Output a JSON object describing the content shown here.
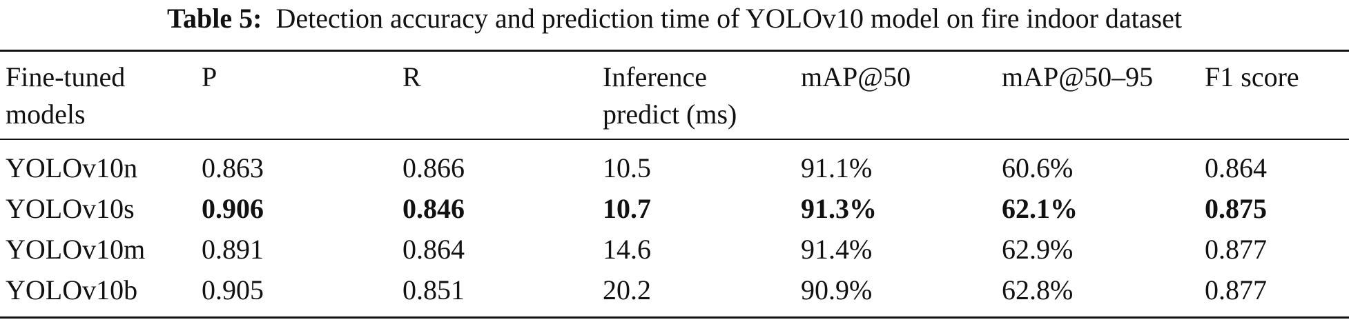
{
  "caption": {
    "label": "Table 5:",
    "text": "Detection accuracy and prediction time of YOLOv10 model on fire indoor dataset"
  },
  "table": {
    "headers": [
      [
        "Fine-tuned",
        "models"
      ],
      [
        "P",
        ""
      ],
      [
        "R",
        ""
      ],
      [
        "Inference",
        "predict (ms)"
      ],
      [
        "mAP@50",
        ""
      ],
      [
        "mAP@50–95",
        ""
      ],
      [
        "F1 score",
        ""
      ]
    ],
    "rows": [
      {
        "cells": [
          "YOLOv10n",
          "0.863",
          "0.866",
          "10.5",
          "91.1%",
          "60.6%",
          "0.864"
        ],
        "bold": false
      },
      {
        "cells": [
          "YOLOv10s",
          "0.906",
          "0.846",
          "10.7",
          "91.3%",
          "62.1%",
          "0.875"
        ],
        "bold": true
      },
      {
        "cells": [
          "YOLOv10m",
          "0.891",
          "0.864",
          "14.6",
          "91.4%",
          "62.9%",
          "0.877"
        ],
        "bold": false
      },
      {
        "cells": [
          "YOLOv10b",
          "0.905",
          "0.851",
          "20.2",
          "90.9%",
          "62.8%",
          "0.877"
        ],
        "bold": false
      }
    ]
  }
}
